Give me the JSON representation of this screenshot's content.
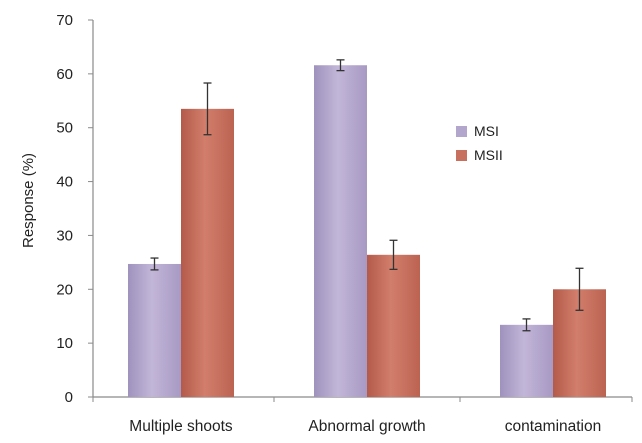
{
  "chart_data": {
    "type": "bar",
    "title": "",
    "xlabel": "",
    "ylabel": "Response (%)",
    "ylim": [
      0,
      70
    ],
    "yticks": [
      0,
      10,
      20,
      30,
      40,
      50,
      60,
      70
    ],
    "grid": false,
    "legend_position": "right",
    "categories": [
      "Multiple shoots",
      "Abnormal growth",
      "contamination"
    ],
    "series": [
      {
        "name": "MSI",
        "color": "#b3a6cc",
        "values": [
          24.7,
          61.6,
          13.4
        ],
        "errors": [
          1.1,
          1.0,
          1.1
        ]
      },
      {
        "name": "MSII",
        "color": "#c8705f",
        "values": [
          53.5,
          26.4,
          20.0
        ],
        "errors": [
          4.8,
          2.7,
          3.9
        ]
      }
    ]
  }
}
